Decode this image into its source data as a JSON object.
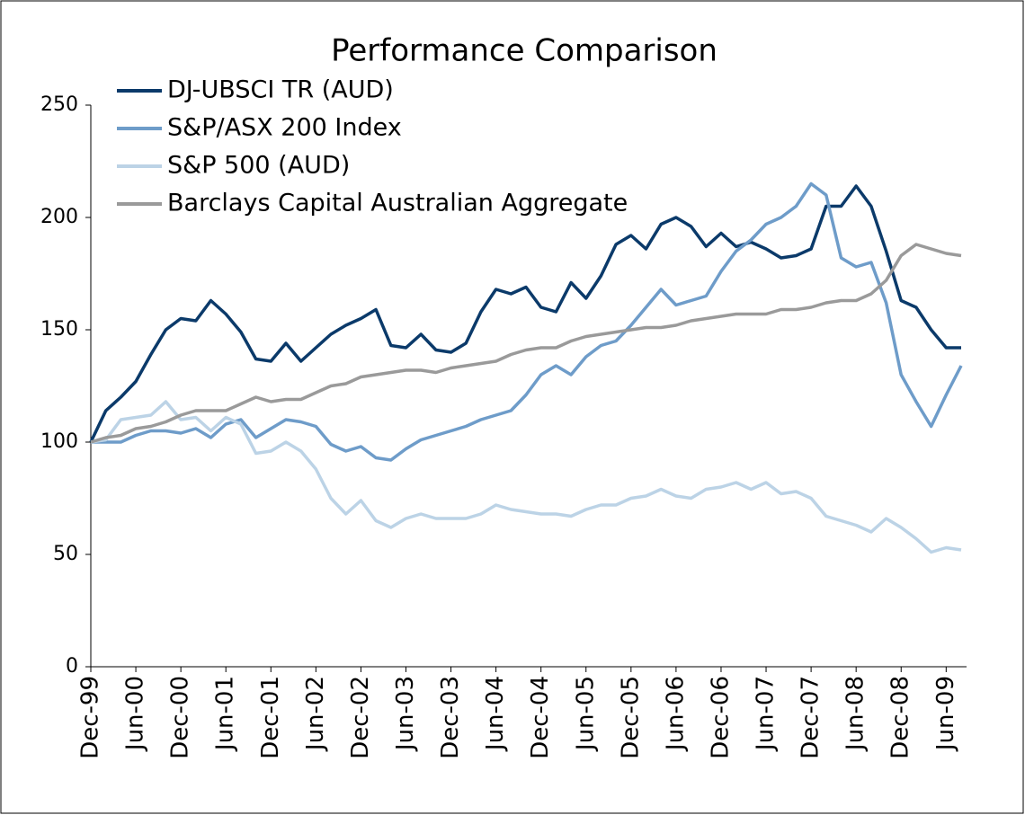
{
  "chart_data": {
    "type": "line",
    "title": "Performance Comparison",
    "categories": [
      "Dec-99",
      null,
      null,
      "Jun-00",
      null,
      null,
      "Dec-00",
      null,
      null,
      "Jun-01",
      null,
      null,
      "Dec-01",
      null,
      null,
      "Jun-02",
      null,
      null,
      "Dec-02",
      null,
      null,
      "Jun-03",
      null,
      null,
      "Dec-03",
      null,
      null,
      "Jun-04",
      null,
      null,
      "Dec-04",
      null,
      null,
      "Jun-05",
      null,
      null,
      "Dec-05",
      null,
      null,
      "Jun-06",
      null,
      null,
      "Dec-06",
      null,
      null,
      "Jun-07",
      null,
      null,
      "Dec-07",
      null,
      null,
      "Jun-08",
      null,
      null,
      "Dec-08",
      null,
      null,
      "Jun-09",
      null
    ],
    "series": [
      {
        "name": "DJ-UBSCI TR (AUD)",
        "color": "#0b3a6a",
        "values": [
          100,
          114,
          120,
          127,
          139,
          150,
          155,
          154,
          163,
          157,
          149,
          137,
          136,
          144,
          136,
          142,
          148,
          152,
          155,
          159,
          143,
          142,
          148,
          141,
          140,
          144,
          158,
          168,
          166,
          169,
          160,
          158,
          171,
          164,
          174,
          188,
          192,
          186,
          197,
          200,
          196,
          187,
          193,
          187,
          189,
          186,
          182,
          183,
          186,
          205,
          205,
          214,
          205,
          185,
          163,
          160,
          150,
          142,
          142
        ]
      },
      {
        "name": "S&P/ASX 200 Index",
        "color": "#6e9cc9",
        "values": [
          100,
          100,
          100,
          103,
          105,
          105,
          104,
          106,
          102,
          108,
          110,
          102,
          106,
          110,
          109,
          107,
          99,
          96,
          98,
          93,
          92,
          97,
          101,
          103,
          105,
          107,
          110,
          112,
          114,
          121,
          130,
          134,
          130,
          138,
          143,
          145,
          152,
          160,
          168,
          161,
          163,
          165,
          176,
          185,
          190,
          197,
          200,
          205,
          215,
          210,
          182,
          178,
          180,
          162,
          130,
          118,
          107,
          121,
          134
        ]
      },
      {
        "name": "S&P 500 (AUD)",
        "color": "#bcd3e6",
        "values": [
          100,
          101,
          110,
          111,
          112,
          118,
          110,
          111,
          105,
          111,
          108,
          95,
          96,
          100,
          96,
          88,
          75,
          68,
          74,
          65,
          62,
          66,
          68,
          66,
          66,
          66,
          68,
          72,
          70,
          69,
          68,
          68,
          67,
          70,
          72,
          72,
          75,
          76,
          79,
          76,
          75,
          79,
          80,
          82,
          79,
          82,
          77,
          78,
          75,
          67,
          65,
          63,
          60,
          66,
          62,
          57,
          51,
          53,
          52
        ]
      },
      {
        "name": "Barclays Capital Australian Aggregate",
        "color": "#9a9a9a",
        "values": [
          100,
          102,
          103,
          106,
          107,
          109,
          112,
          114,
          114,
          114,
          117,
          120,
          118,
          119,
          119,
          122,
          125,
          126,
          129,
          130,
          131,
          132,
          132,
          131,
          133,
          134,
          135,
          136,
          139,
          141,
          142,
          142,
          145,
          147,
          148,
          149,
          150,
          151,
          151,
          152,
          154,
          155,
          156,
          157,
          157,
          157,
          159,
          159,
          160,
          162,
          163,
          163,
          166,
          172,
          183,
          188,
          186,
          184,
          183
        ]
      }
    ],
    "ylim": [
      0,
      250
    ],
    "yticks": [
      0,
      50,
      100,
      150,
      200,
      250
    ],
    "grid": false,
    "legend": "upper left"
  }
}
